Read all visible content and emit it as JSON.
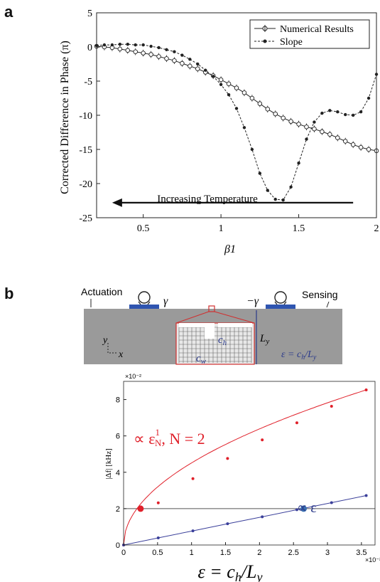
{
  "panel_labels": {
    "a": "a",
    "b": "b"
  },
  "chart_data": [
    {
      "type": "line",
      "ylabel": "Corrected Difference in Phase (π)",
      "xlabel": "β1",
      "xlim": [
        0.2,
        2.0
      ],
      "ylim": [
        -25,
        5
      ],
      "x_ticks": [
        "0.5",
        "1",
        "1.5",
        "2"
      ],
      "x_tick_values": [
        0.5,
        1,
        1.5,
        2
      ],
      "y_ticks": [
        "5",
        "0",
        "-5",
        "-10",
        "-15",
        "-20",
        "-25"
      ],
      "y_tick_values": [
        5,
        0,
        -5,
        -10,
        -15,
        -20,
        -25
      ],
      "legend_position": "top-right",
      "annotation": "Increasing Temperature",
      "annotation_arrow": {
        "from_x": 1.85,
        "to_x": 0.3,
        "y": -22.8
      },
      "series": [
        {
          "name": "Numerical Results",
          "marker": "circle-errorbar",
          "x": [
            0.2,
            0.25,
            0.3,
            0.35,
            0.4,
            0.45,
            0.5,
            0.55,
            0.6,
            0.65,
            0.7,
            0.75,
            0.8,
            0.85,
            0.9,
            0.95,
            1.0,
            1.05,
            1.1,
            1.15,
            1.2,
            1.25,
            1.3,
            1.35,
            1.4,
            1.45,
            1.5,
            1.55,
            1.6,
            1.65,
            1.7,
            1.75,
            1.8,
            1.85,
            1.9,
            1.95,
            2.0
          ],
          "y": [
            0.1,
            0.0,
            -0.1,
            -0.3,
            -0.5,
            -0.7,
            -0.9,
            -1.1,
            -1.4,
            -1.7,
            -2.0,
            -2.4,
            -2.8,
            -3.2,
            -3.7,
            -4.2,
            -4.8,
            -5.4,
            -6.0,
            -6.7,
            -7.5,
            -8.3,
            -9.1,
            -9.8,
            -10.4,
            -10.9,
            -11.3,
            -11.7,
            -12.0,
            -12.4,
            -12.8,
            -13.3,
            -13.8,
            -14.3,
            -14.7,
            -15.0,
            -15.2
          ],
          "error": 0.5
        },
        {
          "name": "Slope",
          "marker": "dot",
          "x": [
            0.2,
            0.25,
            0.3,
            0.35,
            0.4,
            0.45,
            0.5,
            0.55,
            0.6,
            0.65,
            0.7,
            0.75,
            0.8,
            0.85,
            0.9,
            0.95,
            1.0,
            1.05,
            1.1,
            1.15,
            1.2,
            1.25,
            1.3,
            1.35,
            1.4,
            1.45,
            1.5,
            1.55,
            1.6,
            1.65,
            1.7,
            1.75,
            1.8,
            1.85,
            1.9,
            1.95,
            2.0
          ],
          "y": [
            0.2,
            0.3,
            0.3,
            0.4,
            0.4,
            0.3,
            0.3,
            0.1,
            -0.1,
            -0.4,
            -0.7,
            -1.2,
            -1.8,
            -2.5,
            -3.4,
            -4.3,
            -5.5,
            -7.0,
            -9.0,
            -11.8,
            -15.0,
            -18.5,
            -21.0,
            -22.3,
            -22.4,
            -20.5,
            -17.0,
            -13.5,
            -11.0,
            -9.7,
            -9.3,
            -9.5,
            -9.9,
            -10.0,
            -9.5,
            -7.5,
            -4.0
          ]
        }
      ]
    },
    {
      "type": "line",
      "ylabel": "|Δf| [kHz]",
      "xlabel": "ε = c_h/L_y",
      "xlim": [
        0,
        0.037
      ],
      "ylim": [
        0,
        0.09
      ],
      "x_ticks": [
        "0",
        "0.5",
        "1",
        "1.5",
        "2",
        "2.5",
        "3",
        "3.5"
      ],
      "x_tick_values": [
        0,
        0.005,
        0.01,
        0.015,
        0.02,
        0.025,
        0.03,
        0.035
      ],
      "x_multiplier": "×10⁻²",
      "y_ticks": [
        "0",
        "2",
        "4",
        "6",
        "8"
      ],
      "y_tick_values": [
        0,
        0.02,
        0.04,
        0.06,
        0.08
      ],
      "y_multiplier": "×10⁻²",
      "reference_line_y": 0.02,
      "annotations": [
        "∝ ε^(1/N), N = 2",
        "∝ ε"
      ],
      "highlight_points": [
        {
          "x": 0.0025,
          "y": 0.02,
          "color": "#e0202a"
        },
        {
          "x": 0.0265,
          "y": 0.02,
          "color": "#3a6fb0"
        }
      ],
      "series": [
        {
          "color": "#e0202a",
          "x": [
            0.0,
            0.0051,
            0.0102,
            0.0153,
            0.0204,
            0.0255,
            0.0306,
            0.0357
          ],
          "y": [
            0.0,
            0.0232,
            0.0365,
            0.0476,
            0.0578,
            0.0672,
            0.0763,
            0.0853
          ]
        },
        {
          "color": "#3a3f9a",
          "x": [
            0.0,
            0.0051,
            0.0102,
            0.0153,
            0.0204,
            0.0255,
            0.0306,
            0.0357
          ],
          "y": [
            0.0,
            0.0039,
            0.0078,
            0.0117,
            0.0155,
            0.0194,
            0.0233,
            0.0272
          ]
        }
      ]
    }
  ],
  "diagram": {
    "actuation_label": "Actuation",
    "sensing_label": "Sensing",
    "gamma_left": "γ",
    "gamma_right": "−γ",
    "ly_label": "L_y",
    "ch_label": "c_h",
    "cw_label": "c_w",
    "axis_y": "y",
    "axis_x": "x",
    "epsilon_def": "ε = c_h/L_y",
    "colors": {
      "plate": "#9a9a9a",
      "transducer": "#2f55b0",
      "defect_box": "#d03030",
      "annotation": "#2b3a8a"
    }
  }
}
